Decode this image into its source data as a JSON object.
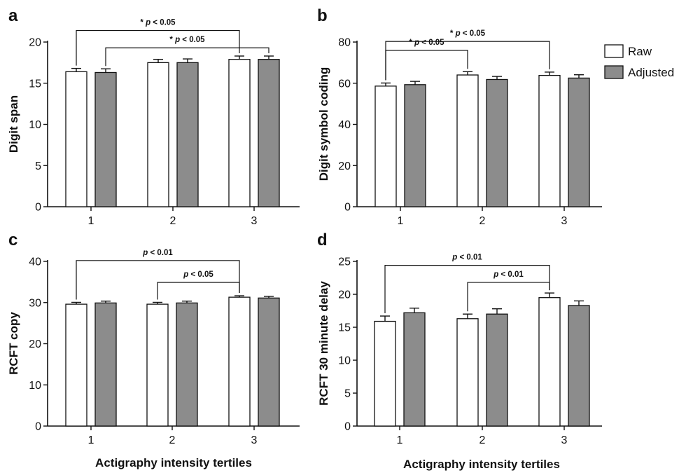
{
  "chart_data": [
    {
      "panel": "a",
      "type": "bar",
      "ylabel": "Digit span",
      "xlabel": "",
      "categories": [
        "1",
        "2",
        "3"
      ],
      "ylim": [
        0,
        20
      ],
      "yticks": [
        0,
        5,
        10,
        15,
        20
      ],
      "series": [
        {
          "name": "Raw",
          "color": "#ffffff",
          "values": [
            16.4,
            17.5,
            17.9
          ],
          "errors": [
            0.4,
            0.4,
            0.4
          ]
        },
        {
          "name": "Adjusted",
          "color": "#8c8c8c",
          "values": [
            16.3,
            17.5,
            17.9
          ],
          "errors": [
            0.45,
            0.45,
            0.4
          ]
        }
      ],
      "annotations": [
        {
          "text": "* p < 0.05",
          "from": {
            "cat": 0,
            "series": 0
          },
          "to": {
            "cat": 2,
            "series": 0
          },
          "level": 21.4
        },
        {
          "text": "* p < 0.05",
          "from": {
            "cat": 0,
            "series": 1
          },
          "to": {
            "cat": 2,
            "series": 1
          },
          "level": 19.3
        }
      ]
    },
    {
      "panel": "b",
      "type": "bar",
      "ylabel": "Digit symbol coding",
      "xlabel": "",
      "categories": [
        "1",
        "2",
        "3"
      ],
      "ylim": [
        0,
        80
      ],
      "yticks": [
        0,
        20,
        40,
        60,
        80
      ],
      "series": [
        {
          "name": "Raw",
          "color": "#ffffff",
          "values": [
            58.6,
            64.0,
            63.8
          ],
          "errors": [
            1.5,
            1.6,
            1.6
          ]
        },
        {
          "name": "Adjusted",
          "color": "#8c8c8c",
          "values": [
            59.3,
            61.8,
            62.5
          ],
          "errors": [
            1.6,
            1.5,
            1.6
          ]
        }
      ],
      "annotations": [
        {
          "text": "* p < 0.05",
          "from": {
            "cat": 0,
            "series": 0
          },
          "to": {
            "cat": 2,
            "series": 0
          },
          "level": 80.3
        },
        {
          "text": "* p < 0.05",
          "from": {
            "cat": 0,
            "series": 0
          },
          "to": {
            "cat": 1,
            "series": 0
          },
          "level": 76.0
        }
      ]
    },
    {
      "panel": "c",
      "type": "bar",
      "ylabel": "RCFT copy",
      "xlabel": "Actigraphy intensity tertiles",
      "categories": [
        "1",
        "2",
        "3"
      ],
      "ylim": [
        0,
        40
      ],
      "yticks": [
        0,
        10,
        20,
        30,
        40
      ],
      "series": [
        {
          "name": "Raw",
          "color": "#ffffff",
          "values": [
            29.6,
            29.6,
            31.3
          ],
          "errors": [
            0.45,
            0.45,
            0.35
          ]
        },
        {
          "name": "Adjusted",
          "color": "#8c8c8c",
          "values": [
            29.9,
            29.9,
            31.1
          ],
          "errors": [
            0.45,
            0.45,
            0.4
          ]
        }
      ],
      "annotations": [
        {
          "text": "p < 0.01",
          "from": {
            "cat": 0,
            "series": 0
          },
          "to": {
            "cat": 2,
            "series": 0
          },
          "level": 40.2
        },
        {
          "text": "p < 0.05",
          "from": {
            "cat": 1,
            "series": 0
          },
          "to": {
            "cat": 2,
            "series": 0
          },
          "level": 34.9
        }
      ]
    },
    {
      "panel": "d",
      "type": "bar",
      "ylabel": "RCFT 30 minute delay",
      "xlabel": "Actigraphy intensity tertiles",
      "categories": [
        "1",
        "2",
        "3"
      ],
      "ylim": [
        0,
        25
      ],
      "yticks": [
        0,
        5,
        10,
        15,
        20,
        25
      ],
      "series": [
        {
          "name": "Raw",
          "color": "#ffffff",
          "values": [
            15.9,
            16.3,
            19.5
          ],
          "errors": [
            0.8,
            0.7,
            0.7
          ]
        },
        {
          "name": "Adjusted",
          "color": "#8c8c8c",
          "values": [
            17.2,
            17.0,
            18.3
          ],
          "errors": [
            0.7,
            0.8,
            0.7
          ]
        }
      ],
      "annotations": [
        {
          "text": "p < 0.01",
          "from": {
            "cat": 0,
            "series": 0
          },
          "to": {
            "cat": 2,
            "series": 0
          },
          "level": 24.4
        },
        {
          "text": "p < 0.01",
          "from": {
            "cat": 1,
            "series": 0
          },
          "to": {
            "cat": 2,
            "series": 0
          },
          "level": 21.8
        }
      ]
    }
  ],
  "legend": {
    "placement": "top-right",
    "items": [
      {
        "label": "Raw",
        "color": "#ffffff"
      },
      {
        "label": "Adjusted",
        "color": "#8c8c8c"
      }
    ]
  }
}
